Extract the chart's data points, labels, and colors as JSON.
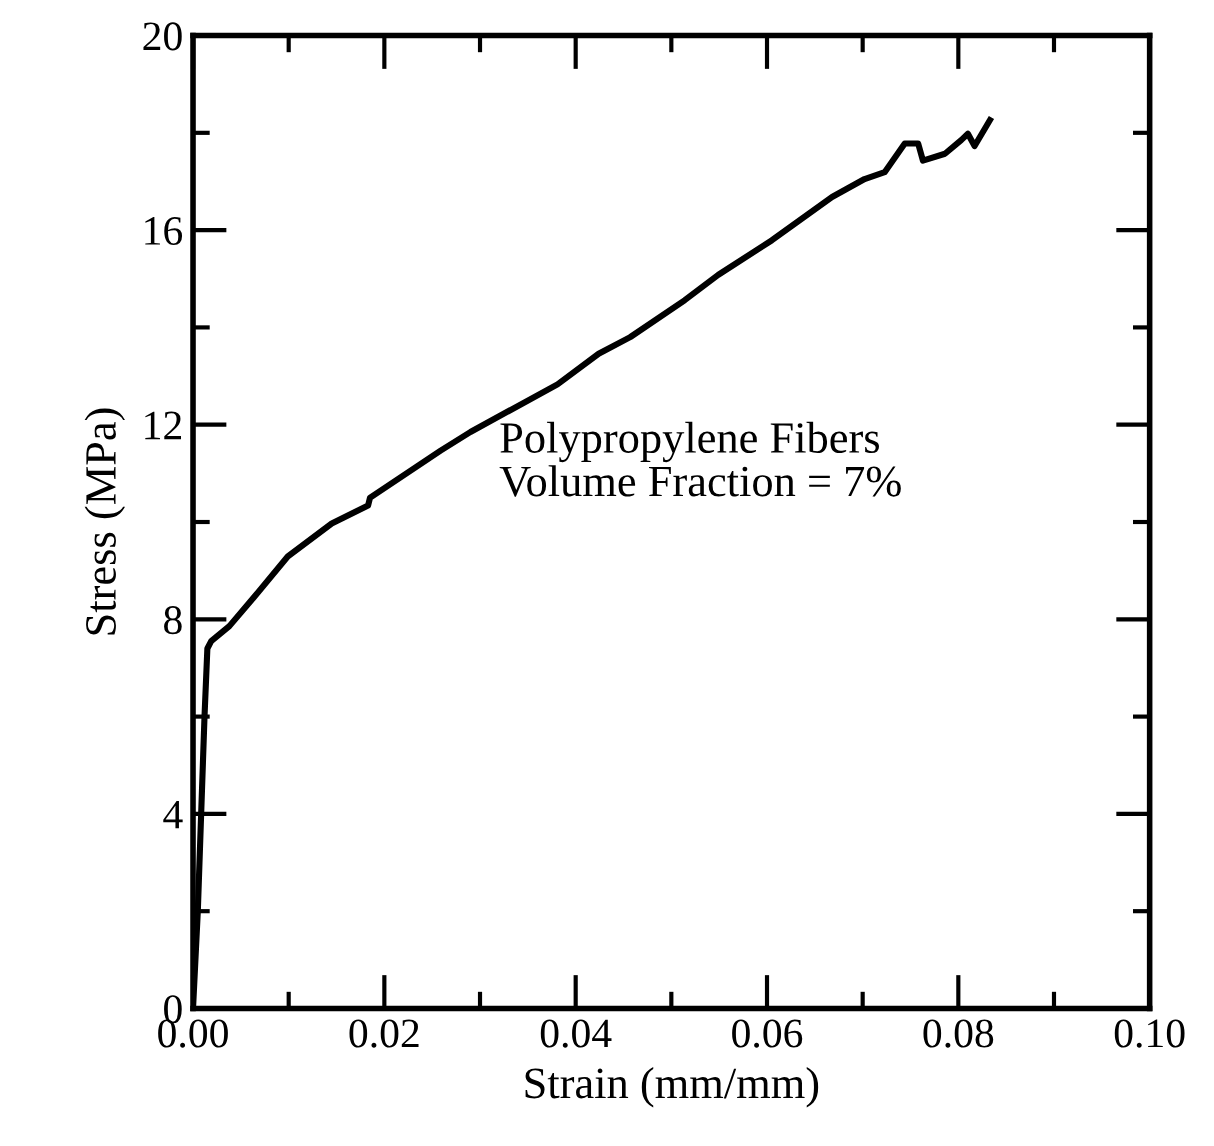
{
  "chart_data": {
    "type": "line",
    "xlabel": "Strain (mm/mm)",
    "ylabel": "Stress (MPa)",
    "annotations": [
      "Polypropylene Fibers\nVolume Fraction = 7%"
    ],
    "xlim": [
      0,
      0.1
    ],
    "xticks": [
      {
        "value": 0,
        "label": "0.00"
      },
      {
        "value": 0.02,
        "label": "0.02"
      },
      {
        "value": 0.04,
        "label": "0.04"
      },
      {
        "value": 0.06,
        "label": "0.06"
      },
      {
        "value": 0.08,
        "label": "0.08"
      },
      {
        "value": 0.1,
        "label": "0.10"
      }
    ],
    "ylim": [
      0,
      20
    ],
    "yticks": [
      0,
      4,
      8,
      12,
      16,
      20
    ],
    "grid": false,
    "marker": "none",
    "line_style": "solid",
    "series": [
      {
        "color": "#000000",
        "x": [
          0,
          0.0005,
          0.0012,
          0.0015,
          0.0019,
          0.0038,
          0.0061,
          0.0099,
          0.0145,
          0.0183,
          0.0185,
          0.0259,
          0.029,
          0.0381,
          0.0424,
          0.0457,
          0.0514,
          0.0549,
          0.0605,
          0.0668,
          0.0702,
          0.0723,
          0.0744,
          0.0758,
          0.0763,
          0.0786,
          0.0803,
          0.081,
          0.0817,
          0.0833
        ],
        "values": [
          0,
          2,
          6,
          7.4,
          7.55,
          7.86,
          8.39,
          9.29,
          9.97,
          10.34,
          10.5,
          11.47,
          11.85,
          12.83,
          13.46,
          13.8,
          14.56,
          15.08,
          15.79,
          16.68,
          17.05,
          17.19,
          17.78,
          17.78,
          17.43,
          17.57,
          17.85,
          17.98,
          17.73,
          18.26
        ]
      }
    ]
  }
}
